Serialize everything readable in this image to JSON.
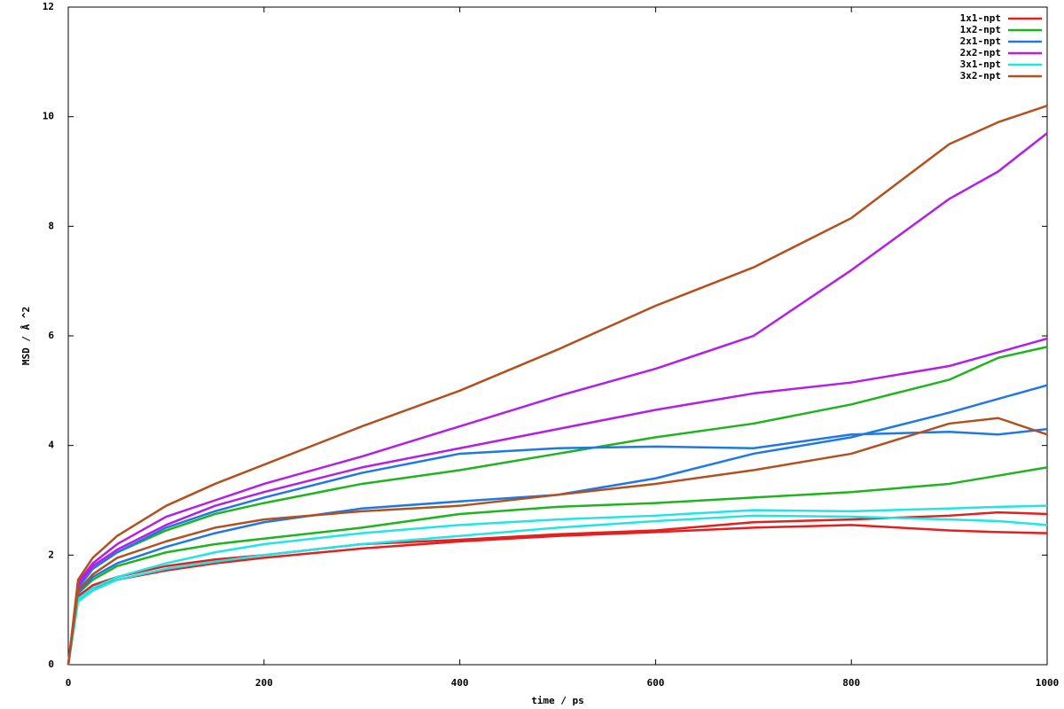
{
  "chart_data": {
    "type": "line",
    "xlabel": "time / ps",
    "ylabel": "MSD / Å ^2",
    "x": [
      0,
      10,
      25,
      50,
      100,
      150,
      200,
      300,
      400,
      500,
      600,
      700,
      800,
      900,
      950,
      1000
    ],
    "xlim": [
      0,
      1000
    ],
    "xticks": [
      0,
      200,
      400,
      600,
      800,
      1000
    ],
    "ylim": [
      0,
      12
    ],
    "yticks": [
      0,
      2,
      4,
      6,
      8,
      10,
      12
    ],
    "grid": false,
    "legend": "upper right",
    "series": [
      {
        "name": "1x1-npt",
        "color": "#e51e1e",
        "values": [
          [
            0,
            1.2,
            1.4,
            1.55,
            1.72,
            1.85,
            1.95,
            2.12,
            2.25,
            2.35,
            2.42,
            2.5,
            2.55,
            2.45,
            2.42,
            2.4
          ],
          [
            0,
            1.25,
            1.45,
            1.6,
            1.8,
            1.92,
            2.0,
            2.2,
            2.28,
            2.38,
            2.45,
            2.6,
            2.65,
            2.72,
            2.78,
            2.75
          ]
        ]
      },
      {
        "name": "1x2-npt",
        "color": "#1eb41e",
        "values": [
          [
            0,
            1.4,
            1.75,
            2.05,
            2.45,
            2.75,
            2.95,
            3.3,
            3.55,
            3.85,
            4.15,
            4.4,
            4.75,
            5.2,
            5.6,
            5.8
          ],
          [
            0,
            1.3,
            1.55,
            1.8,
            2.05,
            2.2,
            2.3,
            2.5,
            2.75,
            2.88,
            2.95,
            3.05,
            3.15,
            3.3,
            3.45,
            3.6
          ]
        ]
      },
      {
        "name": "2x1-npt",
        "color": "#1e78e6",
        "values": [
          [
            0,
            1.4,
            1.75,
            2.05,
            2.5,
            2.8,
            3.05,
            3.5,
            3.85,
            3.95,
            3.98,
            3.95,
            4.2,
            4.25,
            4.2,
            4.3
          ],
          [
            0,
            1.3,
            1.6,
            1.85,
            2.15,
            2.4,
            2.6,
            2.85,
            2.98,
            3.1,
            3.4,
            3.85,
            4.15,
            4.6,
            4.85,
            5.1
          ]
        ]
      },
      {
        "name": "2x2-npt",
        "color": "#b41ee6",
        "values": [
          [
            0,
            1.5,
            1.85,
            2.2,
            2.7,
            3.0,
            3.3,
            3.8,
            4.35,
            4.9,
            5.4,
            6.0,
            7.2,
            8.5,
            9.0,
            9.7
          ],
          [
            0,
            1.45,
            1.8,
            2.1,
            2.55,
            2.9,
            3.15,
            3.6,
            3.95,
            4.3,
            4.65,
            4.95,
            5.15,
            5.45,
            5.7,
            5.95
          ]
        ]
      },
      {
        "name": "3x1-npt",
        "color": "#1ee6e6",
        "values": [
          [
            0,
            1.2,
            1.4,
            1.6,
            1.85,
            2.05,
            2.2,
            2.4,
            2.55,
            2.65,
            2.72,
            2.82,
            2.8,
            2.85,
            2.88,
            2.9
          ],
          [
            0,
            1.15,
            1.35,
            1.55,
            1.75,
            1.88,
            2.0,
            2.2,
            2.35,
            2.5,
            2.62,
            2.72,
            2.7,
            2.65,
            2.62,
            2.55
          ]
        ]
      },
      {
        "name": "3x2-npt",
        "color": "#b4501e",
        "values": [
          [
            0,
            1.55,
            1.95,
            2.35,
            2.9,
            3.3,
            3.65,
            4.35,
            5.0,
            5.75,
            6.55,
            7.25,
            8.15,
            9.5,
            9.9,
            10.2
          ],
          [
            0,
            1.35,
            1.65,
            1.95,
            2.25,
            2.5,
            2.65,
            2.8,
            2.9,
            3.1,
            3.3,
            3.55,
            3.85,
            4.4,
            4.5,
            4.2
          ]
        ]
      }
    ]
  }
}
